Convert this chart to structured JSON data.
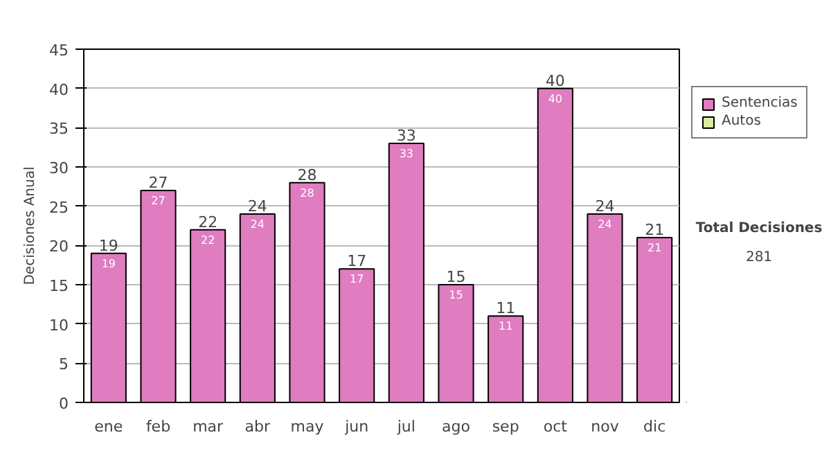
{
  "chart_data": {
    "type": "bar",
    "stacked": true,
    "ylabel": "Decisiones Anual",
    "categories": [
      "ene",
      "feb",
      "mar",
      "abr",
      "may",
      "jun",
      "jul",
      "ago",
      "sep",
      "oct",
      "nov",
      "dic"
    ],
    "series": [
      {
        "name": "Sentencias",
        "color": "#e07cc0",
        "values": [
          19,
          27,
          22,
          24,
          28,
          17,
          33,
          15,
          11,
          40,
          24,
          21
        ]
      },
      {
        "name": "Autos",
        "color": "#d8eca0",
        "values": [
          null,
          null,
          null,
          null,
          null,
          null,
          null,
          null,
          null,
          null,
          null,
          null
        ]
      }
    ],
    "totals": [
      "19",
      "27",
      "22",
      "24",
      "28",
      "17",
      "33",
      "15",
      "11",
      "40",
      "24",
      "21"
    ],
    "data_labels": true,
    "ylim": [
      0,
      45
    ],
    "yticks": [
      0,
      5,
      10,
      15,
      20,
      25,
      30,
      35,
      40,
      45
    ],
    "grid": "y",
    "legend": "right",
    "annotations": [
      "Total Decisiones",
      "281"
    ]
  }
}
